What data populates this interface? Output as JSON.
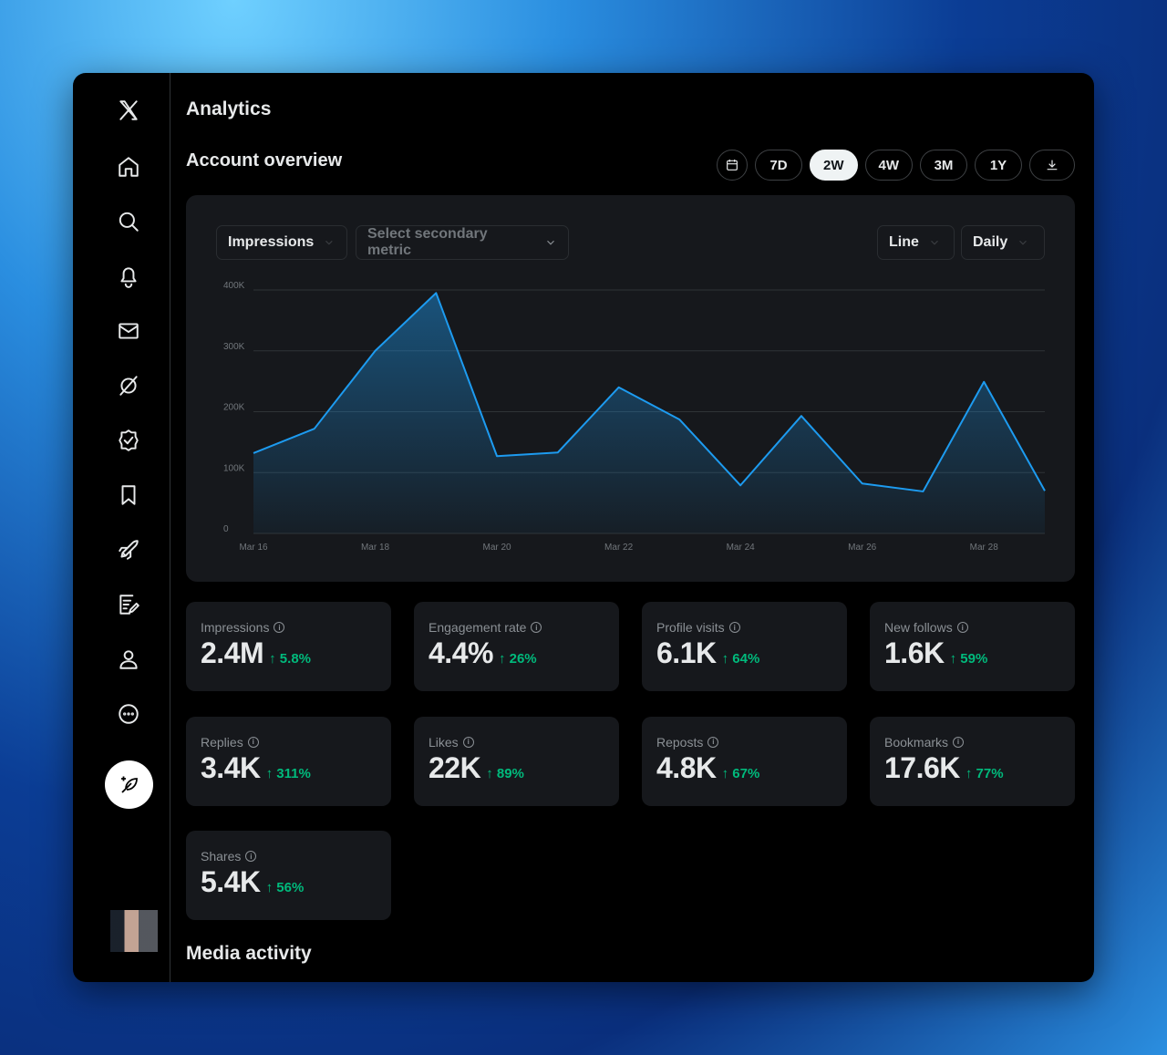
{
  "header": {
    "title": "Analytics",
    "section": "Account overview",
    "media_section": "Media activity"
  },
  "ranges": [
    "7D",
    "2W",
    "4W",
    "3M",
    "1Y"
  ],
  "active_range": "2W",
  "controls": {
    "primary_metric": "Impressions",
    "secondary_metric": "Select secondary metric",
    "chart_type": "Line",
    "interval": "Daily"
  },
  "sidebar": [
    "x-logo",
    "home",
    "search",
    "notifications",
    "messages",
    "grok",
    "verified",
    "bookmarks",
    "rocket",
    "articles",
    "profile",
    "more"
  ],
  "colors": {
    "line": "#1d9bf0",
    "up": "#00ba7c",
    "card": "#16181c"
  },
  "chart_data": {
    "type": "area",
    "x": [
      "Mar 16",
      "Mar 17",
      "Mar 18",
      "Mar 19",
      "Mar 20",
      "Mar 21",
      "Mar 22",
      "Mar 23",
      "Mar 24",
      "Mar 25",
      "Mar 26",
      "Mar 27",
      "Mar 28",
      "Mar 29"
    ],
    "x_tick_labels": [
      "Mar 16",
      "Mar 18",
      "Mar 20",
      "Mar 22",
      "Mar 24",
      "Mar 26",
      "Mar 28"
    ],
    "y_tick_labels": [
      "0",
      "100K",
      "200K",
      "300K",
      "400K"
    ],
    "series": [
      {
        "values": [
          132000,
          172000,
          300000,
          395000,
          127000,
          133000,
          240000,
          187000,
          79000,
          193000,
          82000,
          69000,
          249000,
          70000
        ]
      }
    ],
    "ylim": [
      0,
      400000
    ],
    "grid": true
  },
  "stats": [
    {
      "label": "Impressions",
      "value": "2.4M",
      "change": "↑ 5.8%"
    },
    {
      "label": "Engagement rate",
      "value": "4.4%",
      "change": "↑ 26%"
    },
    {
      "label": "Profile visits",
      "value": "6.1K",
      "change": "↑ 64%"
    },
    {
      "label": "New follows",
      "value": "1.6K",
      "change": "↑ 59%"
    },
    {
      "label": "Replies",
      "value": "3.4K",
      "change": "↑ 311%"
    },
    {
      "label": "Likes",
      "value": "22K",
      "change": "↑ 89%"
    },
    {
      "label": "Reposts",
      "value": "4.8K",
      "change": "↑ 67%"
    },
    {
      "label": "Bookmarks",
      "value": "17.6K",
      "change": "↑ 77%"
    },
    {
      "label": "Shares",
      "value": "5.4K",
      "change": "↑ 56%"
    }
  ]
}
